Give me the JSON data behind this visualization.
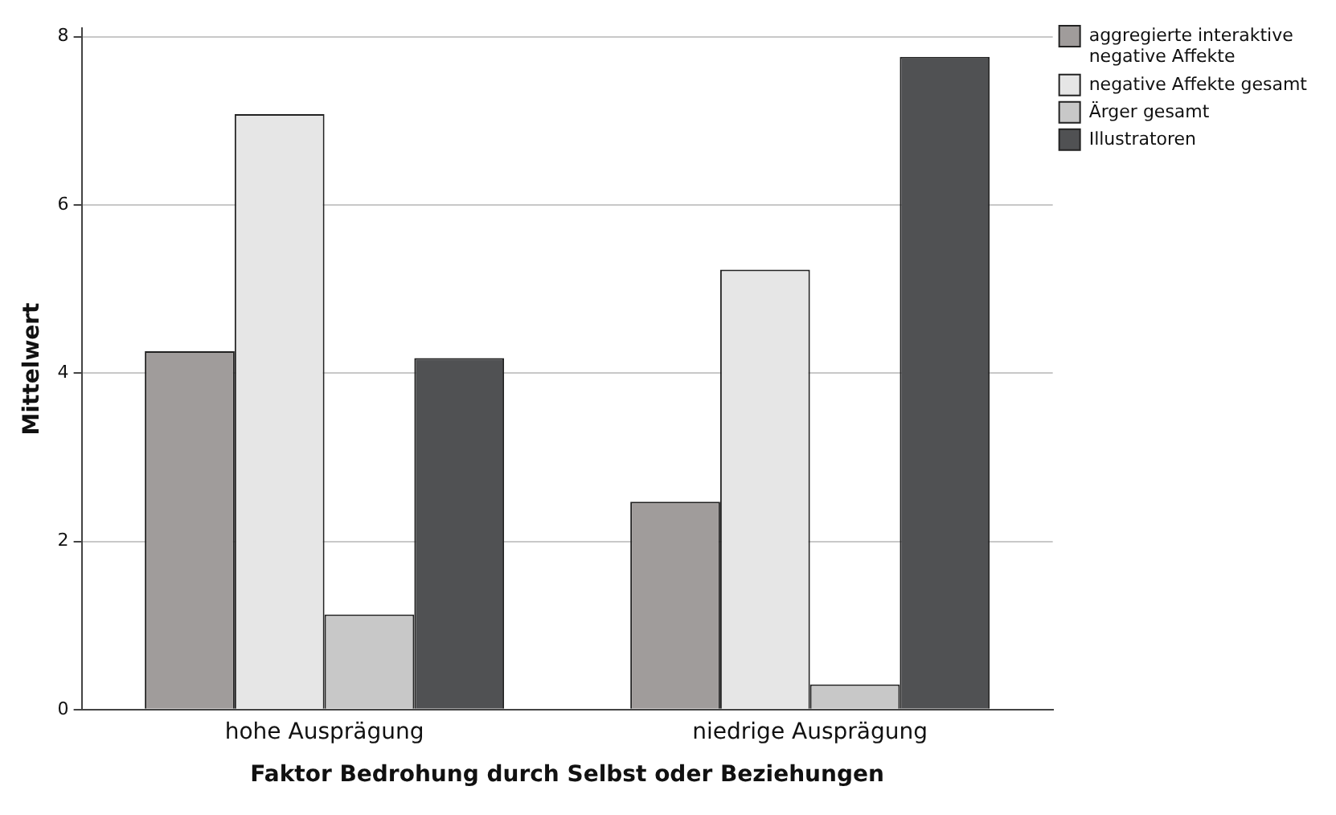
{
  "chart_data": {
    "type": "bar",
    "xlabel": "Faktor Bedrohung durch Selbst oder Beziehungen",
    "ylabel": "Mittelwert",
    "categories": [
      "hohe Ausprägung",
      "niedrige Ausprägung"
    ],
    "series": [
      {
        "name": "aggregierte interaktive negative Affekte",
        "color": "#a09c9b",
        "values": [
          4.26,
          2.47
        ]
      },
      {
        "name": "negative Affekte gesamt",
        "color": "#e6e6e6",
        "values": [
          7.08,
          5.23
        ]
      },
      {
        "name": "Ärger gesamt",
        "color": "#c8c8c8",
        "values": [
          1.13,
          0.3
        ]
      },
      {
        "name": "Illustratoren",
        "color": "#505153",
        "values": [
          4.18,
          7.76
        ]
      }
    ],
    "ylim": [
      0,
      8.1
    ],
    "yticks": [
      0,
      2,
      4,
      6,
      8
    ],
    "grid": "y",
    "legend": "top right"
  }
}
